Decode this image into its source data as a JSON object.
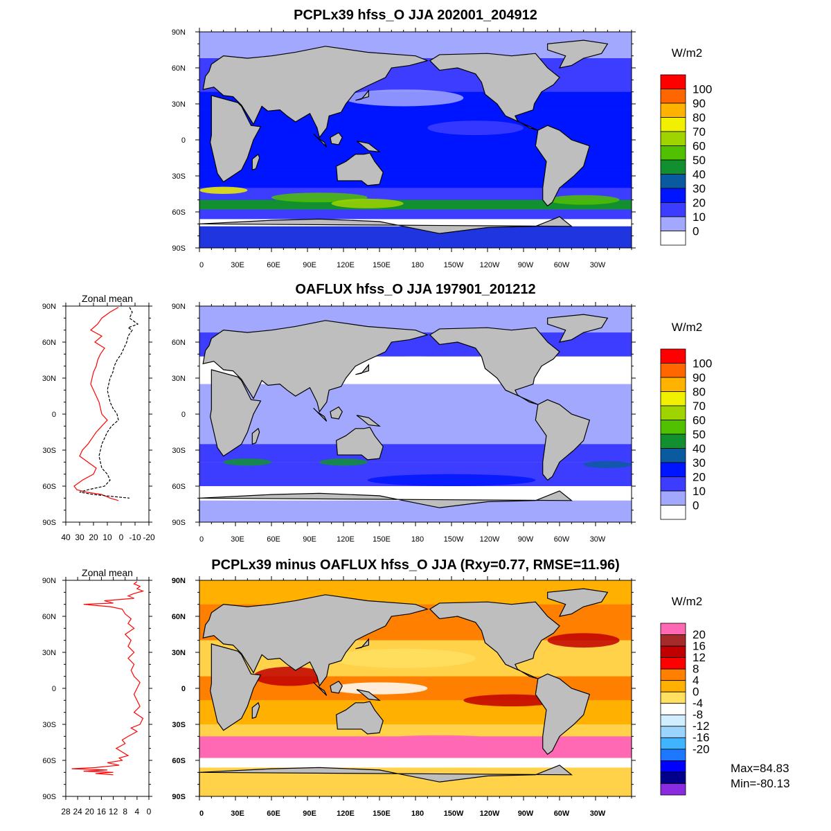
{
  "panels": [
    {
      "id": "model",
      "title": "PCPLx39 hfss_O JJA 202001_204912",
      "unit_label": "W/m2",
      "colorbar": {
        "labels": [
          "100",
          "90",
          "80",
          "70",
          "60",
          "50",
          "40",
          "30",
          "20",
          "10",
          "0"
        ],
        "colors": [
          "#ff0000",
          "#ff6600",
          "#ffb300",
          "#f0f000",
          "#a0d400",
          "#50c000",
          "#129030",
          "#0a5aa0",
          "#0015ff",
          "#3d3dff",
          "#a3a8ff",
          "#ffffff"
        ]
      },
      "has_zonal_mean": false
    },
    {
      "id": "obs",
      "title": "OAFLUX hfss_O JJA 197901_201212",
      "unit_label": "W/m2",
      "colorbar": {
        "labels": [
          "100",
          "90",
          "80",
          "70",
          "60",
          "50",
          "40",
          "30",
          "20",
          "10",
          "0"
        ],
        "colors": [
          "#ff0000",
          "#ff6600",
          "#ffb300",
          "#f0f000",
          "#a0d400",
          "#50c000",
          "#129030",
          "#0a5aa0",
          "#0015ff",
          "#3d3dff",
          "#a3a8ff",
          "#ffffff"
        ]
      },
      "has_zonal_mean": true,
      "zonal_mean": {
        "title": "Zonal mean",
        "x_ticks": [
          "40",
          "30",
          "20",
          "10",
          "0",
          "-10",
          "-20"
        ],
        "xlim": [
          40,
          -20
        ],
        "series": [
          {
            "color": "#ff0000",
            "style": "solid",
            "lat": [
              89,
              85,
              80,
              75,
              70,
              65,
              60,
              55,
              50,
              45,
              40,
              35,
              30,
              25,
              20,
              15,
              10,
              5,
              0,
              -5,
              -10,
              -15,
              -20,
              -25,
              -30,
              -35,
              -40,
              -45,
              -50,
              -55,
              -60,
              -63,
              -65,
              -67,
              -70,
              -72
            ],
            "value": [
              2,
              8,
              14,
              17,
              22,
              14,
              19,
              12,
              15,
              17,
              18,
              20,
              21,
              22,
              20,
              18,
              16,
              15,
              14,
              10,
              14,
              18,
              21,
              24,
              28,
              30,
              24,
              18,
              20,
              28,
              34,
              32,
              25,
              14,
              8,
              2
            ]
          },
          {
            "color": "#000000",
            "style": "dashed",
            "lat": [
              89,
              85,
              80,
              75,
              72,
              70,
              65,
              60,
              55,
              50,
              45,
              40,
              35,
              30,
              25,
              20,
              15,
              10,
              5,
              0,
              -5,
              -10,
              -15,
              -20,
              -25,
              -30,
              -35,
              -40,
              -45,
              -50,
              -55,
              -60,
              -63,
              -65,
              -67,
              -70
            ],
            "value": [
              -6,
              -8,
              -6,
              -12,
              -5,
              -8,
              -5,
              -4,
              -2,
              0,
              3,
              5,
              6,
              8,
              9,
              10,
              9,
              8,
              6,
              3,
              2,
              7,
              10,
              12,
              14,
              15,
              16,
              15,
              14,
              10,
              8,
              12,
              24,
              30,
              20,
              -6
            ]
          }
        ]
      }
    },
    {
      "id": "diff",
      "title": "PCPLx39 minus OAFLUX hfss_O JJA (Rxy=0.77, RMSE=11.96)",
      "unit_label": "W/m2",
      "colorbar": {
        "labels": [
          "20",
          "16",
          "12",
          "8",
          "4",
          "0",
          "-4",
          "-8",
          "-12",
          "-16",
          "-20"
        ],
        "colors": [
          "#ff69b4",
          "#a52a2a",
          "#c00000",
          "#ff0000",
          "#ff8000",
          "#ffb000",
          "#ffe060",
          "#ffffff",
          "#d0eeff",
          "#9ad4ff",
          "#40b4ff",
          "#1e78ff",
          "#0000ff",
          "#00008b",
          "#8a2be2"
        ]
      },
      "has_zonal_mean": true,
      "zonal_mean": {
        "title": "Zonal mean",
        "x_ticks": [
          "28",
          "24",
          "20",
          "16",
          "12",
          "8",
          "4",
          "0"
        ],
        "xlim": [
          28,
          0
        ],
        "series": [
          {
            "color": "#ff0000",
            "style": "solid",
            "lat": [
              89,
              87,
              85,
              83,
              81,
              79,
              77,
              75,
              73,
              71,
              70,
              68,
              66,
              62,
              58,
              54,
              50,
              45,
              40,
              35,
              30,
              25,
              20,
              15,
              10,
              5,
              0,
              -5,
              -10,
              -15,
              -20,
              -25,
              -30,
              -33,
              -36,
              -40,
              -43,
              -46,
              -50,
              -53,
              -56,
              -58,
              -60,
              -62,
              -64,
              -66,
              -67,
              -68,
              -69,
              -70,
              -71,
              -72
            ],
            "value": [
              4,
              5,
              3,
              4,
              2,
              5,
              7,
              5,
              15,
              12,
              22,
              13,
              9,
              8,
              6,
              7,
              5,
              8,
              6,
              7,
              5,
              7,
              5,
              6,
              5,
              3,
              4,
              5,
              4,
              3,
              5,
              2,
              3,
              6,
              4,
              7,
              9,
              8,
              11,
              9,
              7,
              10,
              9,
              14,
              10,
              18,
              26,
              14,
              22,
              12,
              18,
              12
            ]
          }
        ]
      },
      "stats": {
        "max_label": "Max=84.83",
        "min_label": "Min=-80.13"
      }
    }
  ],
  "map_axes": {
    "lat_labels": [
      "90N",
      "60N",
      "30N",
      "0",
      "30S",
      "60S",
      "90S"
    ],
    "lon_labels": [
      "0",
      "30E",
      "60E",
      "90E",
      "120E",
      "150E",
      "180",
      "150W",
      "120W",
      "90W",
      "60W",
      "30W"
    ]
  },
  "land_color": "#bebebe"
}
